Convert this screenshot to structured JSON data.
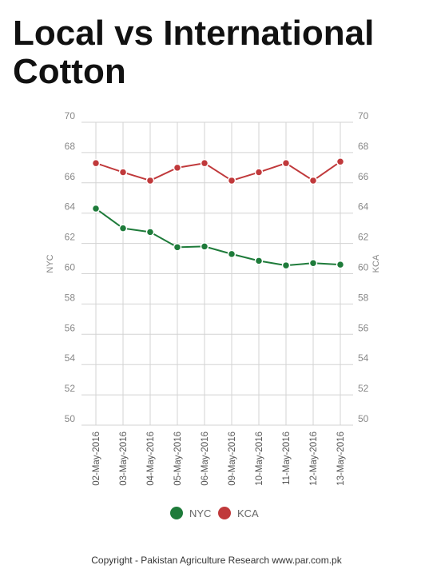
{
  "header": {
    "title_line1": "Local vs International",
    "title_line2": "Cotton"
  },
  "footer": {
    "copyright": "Copyright - Pakistan Agriculture Research www.par.com.pk"
  },
  "colors": {
    "nyc": "#1e7b3a",
    "kca": "#c0393b",
    "grid": "#d3d3d3",
    "tick": "#888888"
  },
  "chart_data": {
    "type": "line",
    "title": "Local vs International Cotton",
    "categories": [
      "02-May-2016",
      "03-May-2016",
      "04-May-2016",
      "05-May-2016",
      "06-May-2016",
      "09-May-2016",
      "10-May-2016",
      "11-May-2016",
      "12-May-2016",
      "13-May-2016"
    ],
    "y_left": {
      "label": "NYC",
      "ylim": [
        50,
        70
      ],
      "ticks": [
        50,
        52,
        54,
        56,
        58,
        60,
        62,
        64,
        66,
        68,
        70
      ]
    },
    "y_right": {
      "label": "KCA",
      "ylim": [
        50,
        70
      ],
      "ticks": [
        50,
        52,
        54,
        56,
        58,
        60,
        62,
        64,
        66,
        68,
        70
      ]
    },
    "series": [
      {
        "name": "NYC",
        "color": "#1e7b3a",
        "values": [
          64.3,
          63.0,
          62.75,
          61.75,
          61.8,
          61.3,
          60.85,
          60.55,
          60.7,
          60.6
        ]
      },
      {
        "name": "KCA",
        "color": "#c0393b",
        "values": [
          67.3,
          66.7,
          66.15,
          67.0,
          67.3,
          66.15,
          66.7,
          67.3,
          66.15,
          67.4
        ]
      }
    ],
    "grid": true,
    "legend_position": "bottom-center"
  }
}
